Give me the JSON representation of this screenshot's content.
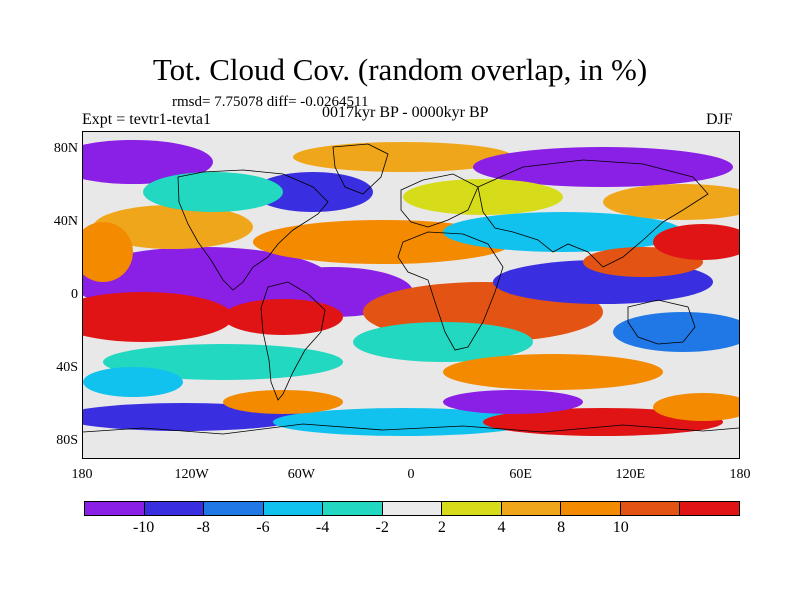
{
  "title": "Tot. Cloud Cov. (random overlap, in %)",
  "stats": "rmsd= 7.75078 diff= -0.0264511",
  "experiment": "Expt = tevtr1-tevta1",
  "period": "0017kyr BP - 0000kyr BP",
  "season": "DJF",
  "map": {
    "projection": "cylindrical-equidistant",
    "lat_range": [
      -90,
      90
    ],
    "lon_range": [
      -180,
      180
    ],
    "y_ticks": [
      {
        "label": "80N",
        "lat": 80
      },
      {
        "label": "40N",
        "lat": 40
      },
      {
        "label": "0",
        "lat": 0
      },
      {
        "label": "40S",
        "lat": -40
      },
      {
        "label": "80S",
        "lat": -80
      }
    ],
    "x_ticks": [
      {
        "label": "180",
        "lon": -180
      },
      {
        "label": "120W",
        "lon": -120
      },
      {
        "label": "60W",
        "lon": -60
      },
      {
        "label": "0",
        "lon": 0
      },
      {
        "label": "60E",
        "lon": 60
      },
      {
        "label": "120E",
        "lon": 120
      },
      {
        "label": "180",
        "lon": 180
      }
    ]
  },
  "colorbar": {
    "colors": [
      "#8a1fe6",
      "#3a2fe0",
      "#1f78e6",
      "#12c2ee",
      "#22d8c0",
      "#ebebeb",
      "#d7dc1a",
      "#f0a61a",
      "#f38a00",
      "#e35414",
      "#e01414"
    ],
    "labels": [
      {
        "text": "-10",
        "pos": 1
      },
      {
        "text": "-8",
        "pos": 2
      },
      {
        "text": "-6",
        "pos": 3
      },
      {
        "text": "-4",
        "pos": 4
      },
      {
        "text": "-2",
        "pos": 5
      },
      {
        "text": "2",
        "pos": 6
      },
      {
        "text": "4",
        "pos": 7
      },
      {
        "text": "8",
        "pos": 8
      },
      {
        "text": "10",
        "pos": 9
      }
    ]
  }
}
